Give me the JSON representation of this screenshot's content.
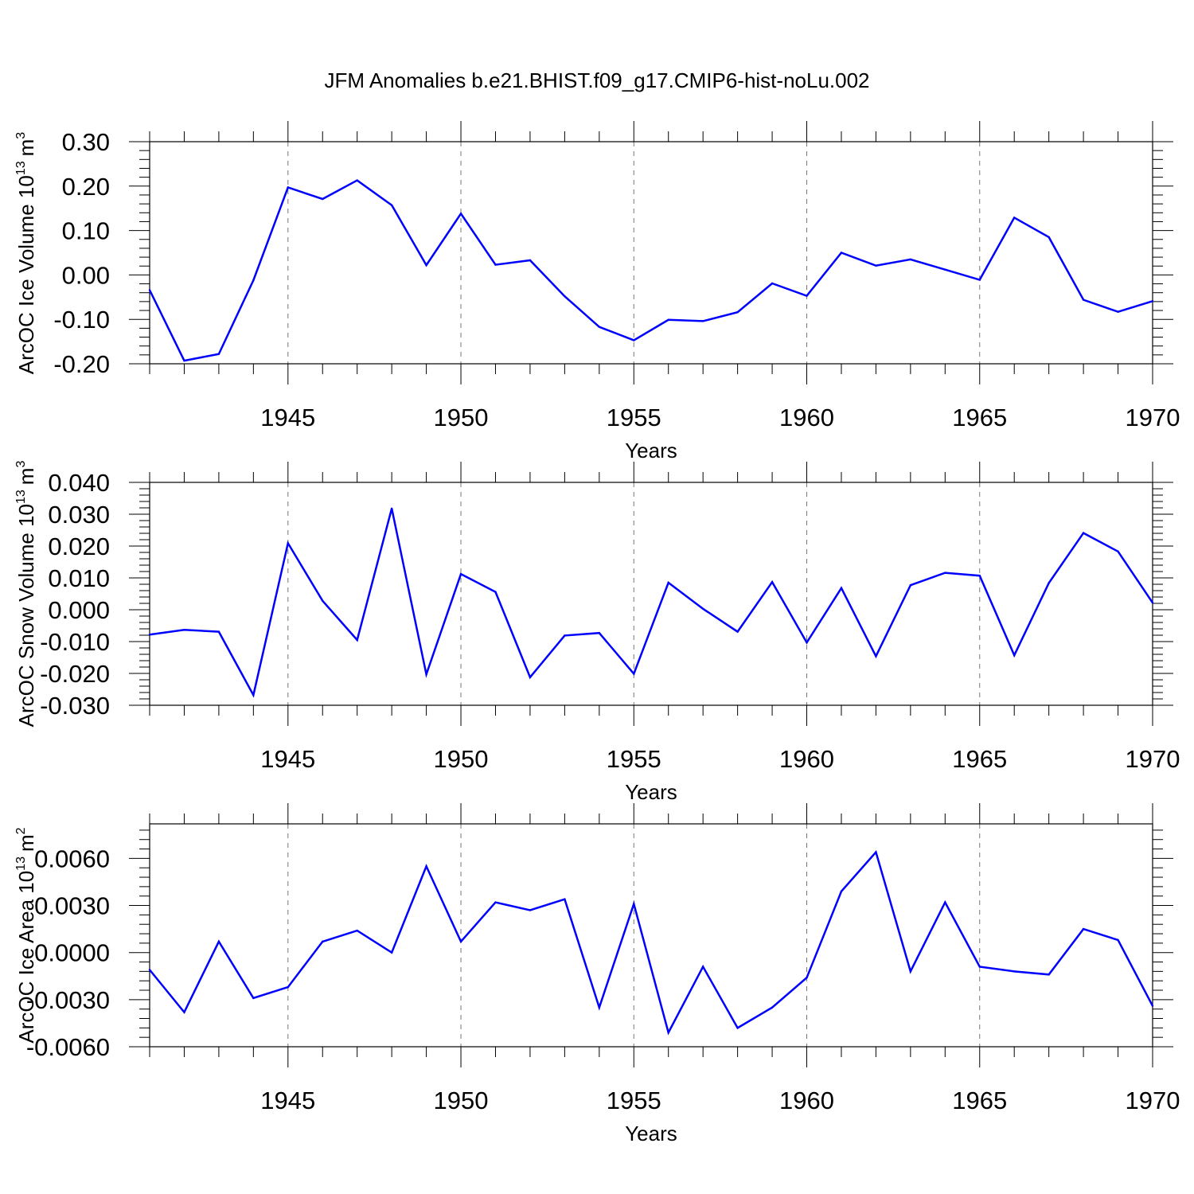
{
  "title": "JFM Anomalies b.e21.BHIST.f09_g17.CMIP6-hist-noLu.002",
  "colors": {
    "line": "#0000ff",
    "grid": "#777777",
    "axis": "#000000",
    "background": "#ffffff"
  },
  "chart_data": [
    {
      "type": "line",
      "xlabel": "Years",
      "ylabel": "ArcOC Ice Volume 10",
      "ylabel_exponent": "13",
      "ylabel_unit": "m",
      "ylabel_unit_exponent": "3",
      "xlim": [
        1941,
        1970
      ],
      "ylim": [
        -0.2,
        0.3
      ],
      "yticks": [
        -0.2,
        -0.1,
        0.0,
        0.1,
        0.2,
        0.3
      ],
      "ytick_labels": [
        "-0.20",
        "-0.10",
        "0.00",
        "0.10",
        "0.20",
        "0.30"
      ],
      "xticks": [
        1945,
        1950,
        1955,
        1960,
        1965,
        1970
      ],
      "xtick_labels": [
        "1945",
        "1950",
        "1955",
        "1960",
        "1965",
        "1970"
      ],
      "grid": "vertical dashed at major x ticks",
      "series": [
        {
          "name": "Ice Volume",
          "x": [
            1941,
            1942,
            1943,
            1944,
            1945,
            1946,
            1947,
            1948,
            1949,
            1950,
            1951,
            1952,
            1953,
            1954,
            1955,
            1956,
            1957,
            1958,
            1959,
            1960,
            1961,
            1962,
            1963,
            1964,
            1965,
            1966,
            1967,
            1968,
            1969,
            1970
          ],
          "values": [
            -0.034,
            -0.193,
            -0.178,
            -0.012,
            0.197,
            0.171,
            0.213,
            0.157,
            0.022,
            0.138,
            0.023,
            0.033,
            -0.048,
            -0.117,
            -0.147,
            -0.101,
            -0.104,
            -0.084,
            -0.019,
            -0.047,
            0.05,
            0.021,
            0.035,
            0.012,
            -0.011,
            0.129,
            0.085,
            -0.056,
            -0.083,
            -0.059
          ]
        }
      ]
    },
    {
      "type": "line",
      "xlabel": "Years",
      "ylabel": "ArcOC Snow Volume 10",
      "ylabel_exponent": "13",
      "ylabel_unit": "m",
      "ylabel_unit_exponent": "3",
      "xlim": [
        1941,
        1970
      ],
      "ylim": [
        -0.03,
        0.04
      ],
      "yticks": [
        -0.03,
        -0.02,
        -0.01,
        0.0,
        0.01,
        0.02,
        0.03,
        0.04
      ],
      "ytick_labels": [
        "-0.030",
        "-0.020",
        "-0.010",
        "0.000",
        "0.010",
        "0.020",
        "0.030",
        "0.040"
      ],
      "xticks": [
        1945,
        1950,
        1955,
        1960,
        1965,
        1970
      ],
      "xtick_labels": [
        "1945",
        "1950",
        "1955",
        "1960",
        "1965",
        "1970"
      ],
      "grid": "vertical dashed at major x ticks",
      "series": [
        {
          "name": "Snow Volume",
          "x": [
            1941,
            1942,
            1943,
            1944,
            1945,
            1946,
            1947,
            1948,
            1949,
            1950,
            1951,
            1952,
            1953,
            1954,
            1955,
            1956,
            1957,
            1958,
            1959,
            1960,
            1961,
            1962,
            1963,
            1964,
            1965,
            1966,
            1967,
            1968,
            1969,
            1970
          ],
          "values": [
            -0.0078,
            -0.0063,
            -0.0069,
            -0.0268,
            0.0209,
            0.0028,
            -0.0095,
            0.0318,
            -0.0203,
            0.0112,
            0.0056,
            -0.0212,
            -0.0081,
            -0.0073,
            -0.0201,
            0.0085,
            0.0003,
            -0.0069,
            0.0087,
            -0.0103,
            0.0068,
            -0.0146,
            0.0077,
            0.0116,
            0.0107,
            -0.0143,
            0.0084,
            0.0241,
            0.0183,
            0.0022
          ]
        }
      ]
    },
    {
      "type": "line",
      "xlabel": "Years",
      "ylabel": "ArcOC Ice Area 10",
      "ylabel_exponent": "13",
      "ylabel_unit": "m",
      "ylabel_unit_exponent": "2",
      "xlim": [
        1941,
        1970
      ],
      "ylim": [
        -0.006,
        0.0082
      ],
      "yticks": [
        -0.006,
        -0.003,
        0.0,
        0.003,
        0.006
      ],
      "ytick_labels": [
        "-0.0060",
        "-0.0030",
        "0.0000",
        "0.0030",
        "0.0060"
      ],
      "xticks": [
        1945,
        1950,
        1955,
        1960,
        1965,
        1970
      ],
      "xtick_labels": [
        "1945",
        "1950",
        "1955",
        "1960",
        "1965",
        "1970"
      ],
      "grid": "vertical dashed at major x ticks",
      "series": [
        {
          "name": "Ice Area",
          "x": [
            1941,
            1942,
            1943,
            1944,
            1945,
            1946,
            1947,
            1948,
            1949,
            1950,
            1951,
            1952,
            1953,
            1954,
            1955,
            1956,
            1957,
            1958,
            1959,
            1960,
            1961,
            1962,
            1963,
            1964,
            1965,
            1966,
            1967,
            1968,
            1969,
            1970
          ],
          "values": [
            -0.0011,
            -0.0038,
            0.0007,
            -0.0029,
            -0.0022,
            0.0007,
            0.0014,
            0.0,
            0.0055,
            0.0007,
            0.0032,
            0.0027,
            0.0034,
            -0.0035,
            0.0031,
            -0.0051,
            -0.0009,
            -0.0048,
            -0.0035,
            -0.0016,
            0.0039,
            0.0064,
            -0.0012,
            0.0032,
            -0.0009,
            -0.0012,
            -0.0014,
            0.0015,
            0.0008,
            -0.0034
          ]
        }
      ]
    }
  ]
}
